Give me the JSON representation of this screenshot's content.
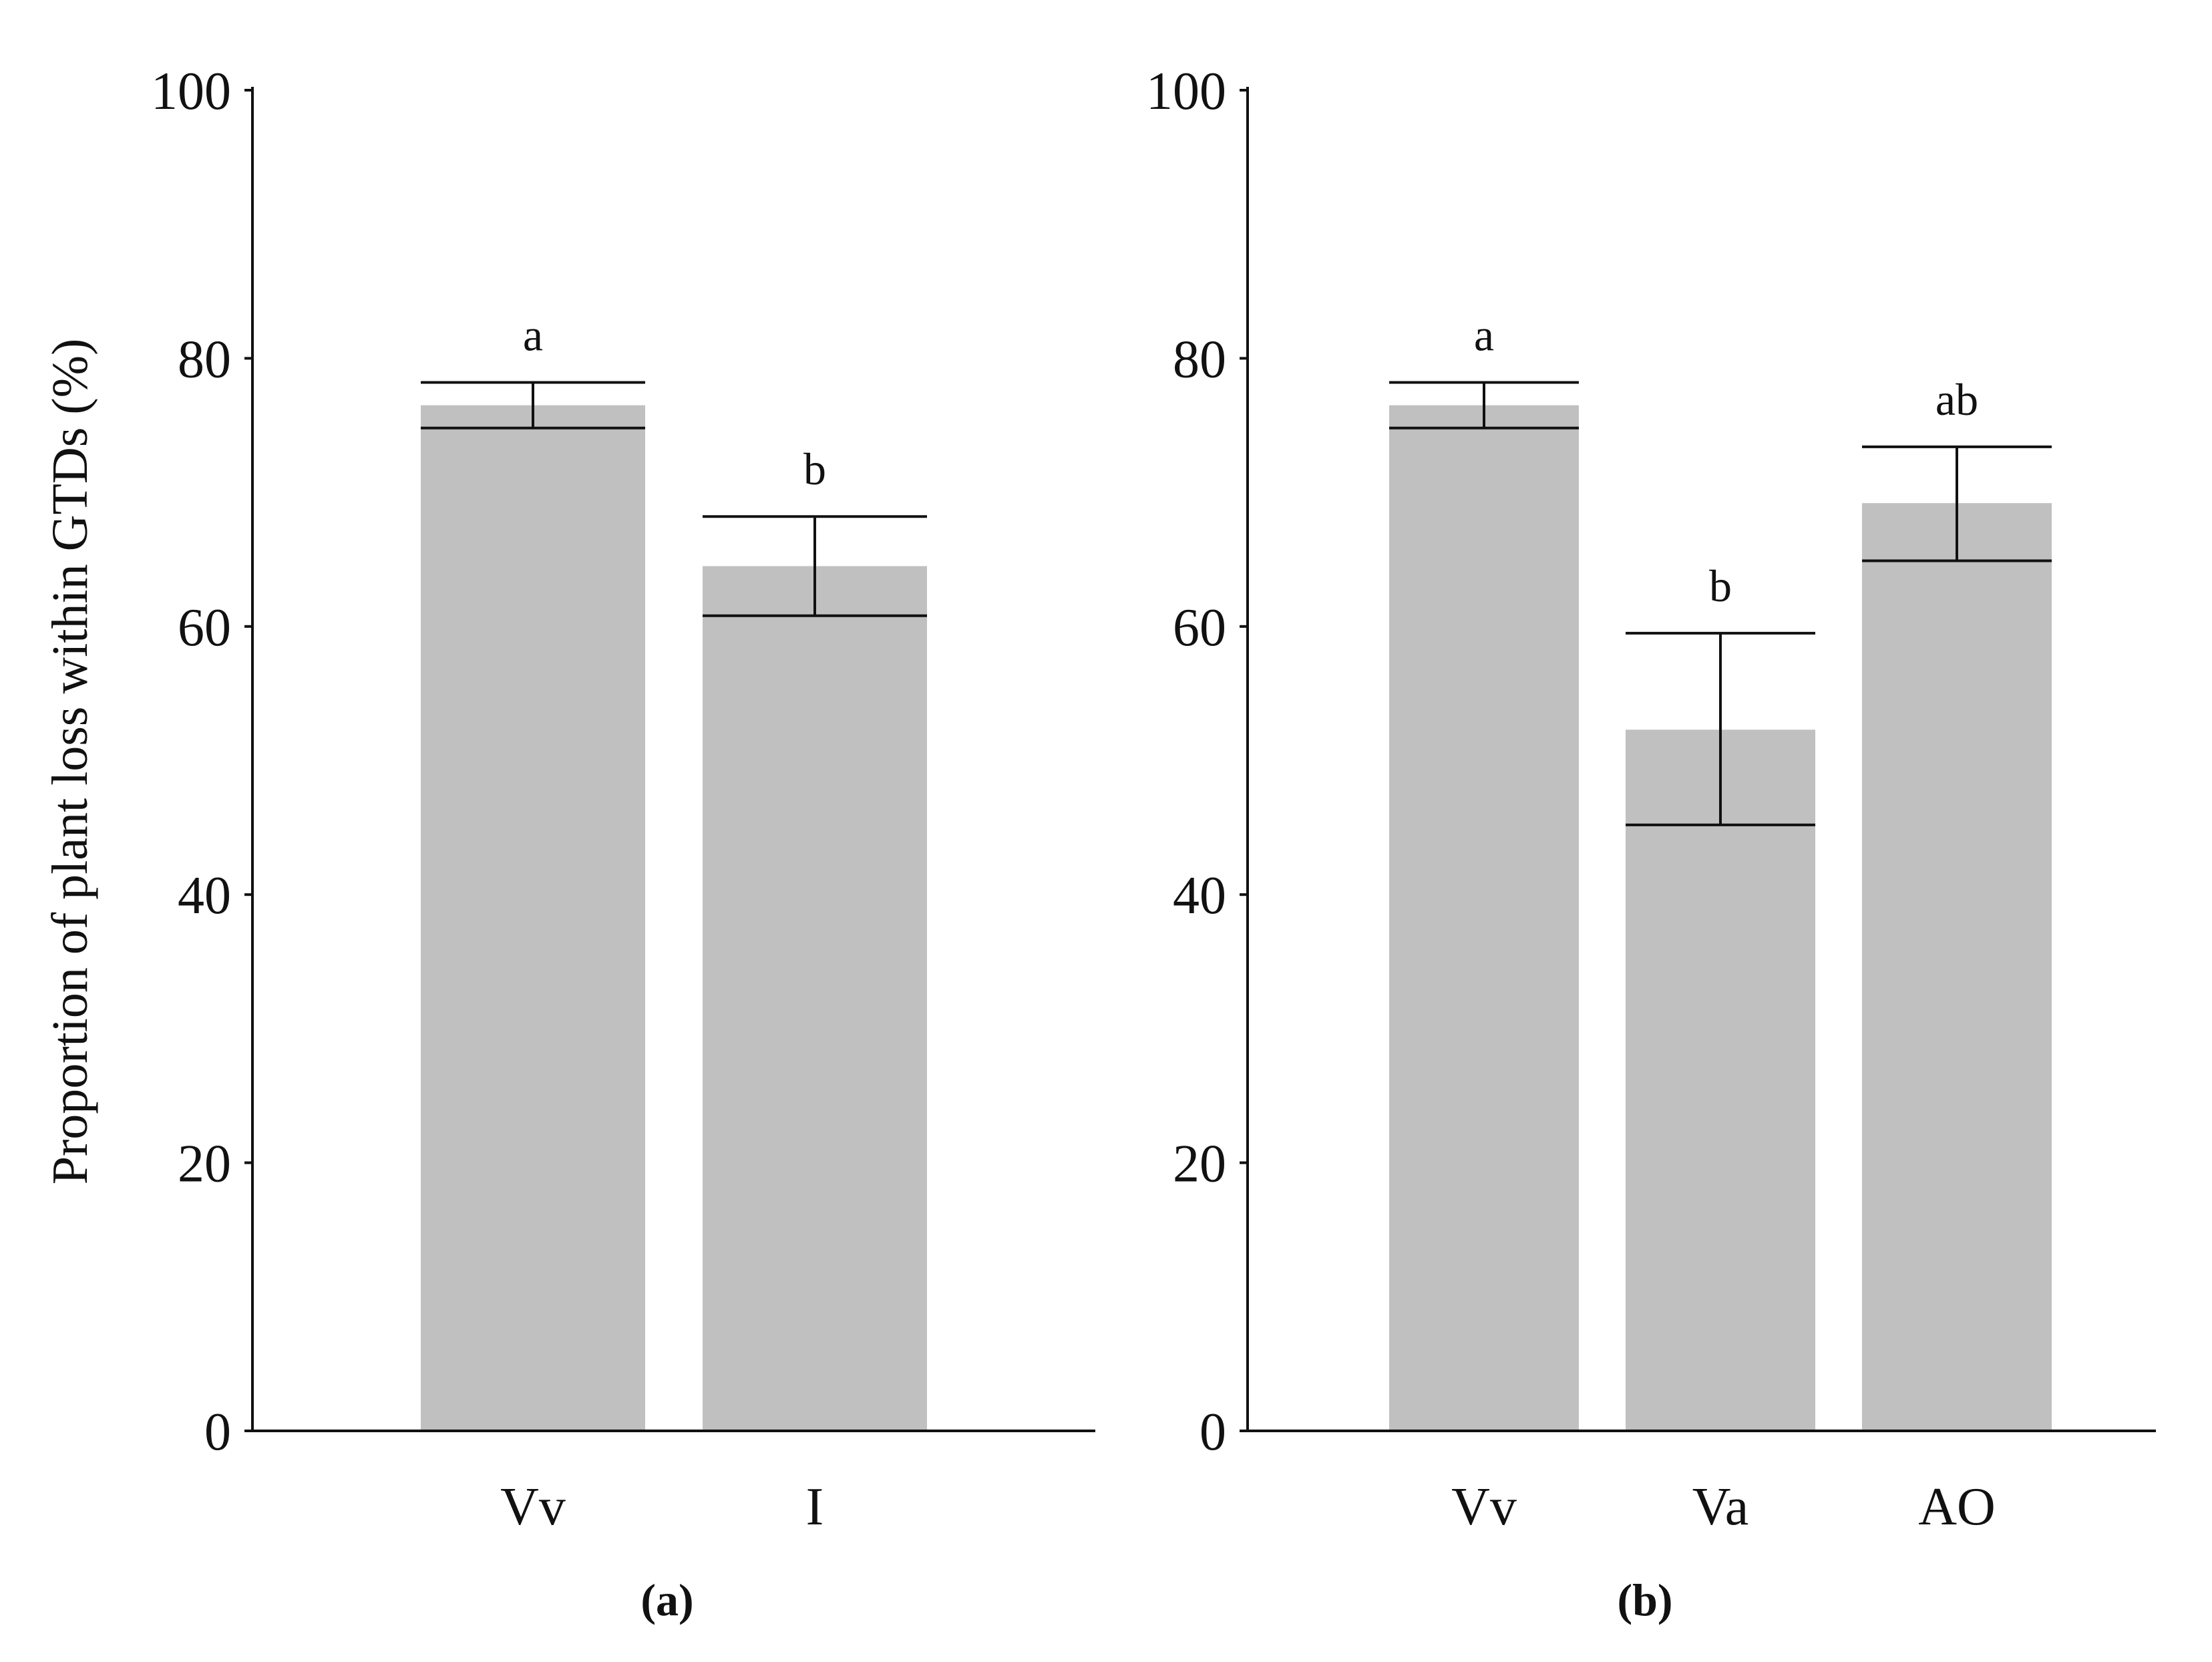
{
  "chart_data": {
    "ylabel": "Proportion of plant loss within GTDs (%)",
    "panels": [
      {
        "type": "bar",
        "panel_label": "(a)",
        "categories": [
          "Vv",
          "I"
        ],
        "values": [
          76.5,
          64.5
        ],
        "error_low": [
          74.8,
          60.8
        ],
        "error_high": [
          78.2,
          68.2
        ],
        "significance": [
          "a",
          "b"
        ],
        "yticks": [
          0,
          20,
          40,
          60,
          80,
          100
        ],
        "ylim": [
          0,
          100
        ],
        "bar_color": "#c0c0c0",
        "grid": false
      },
      {
        "type": "bar",
        "panel_label": "(b)",
        "categories": [
          "Vv",
          "Va",
          "AO"
        ],
        "values": [
          76.5,
          52.3,
          69.2
        ],
        "error_low": [
          74.8,
          45.2,
          64.9
        ],
        "error_high": [
          78.2,
          59.5,
          73.4
        ],
        "significance": [
          "a",
          "b",
          "ab"
        ],
        "yticks": [
          0,
          20,
          40,
          60,
          80,
          100
        ],
        "ylim": [
          0,
          100
        ],
        "bar_color": "#c0c0c0",
        "grid": false
      }
    ]
  }
}
